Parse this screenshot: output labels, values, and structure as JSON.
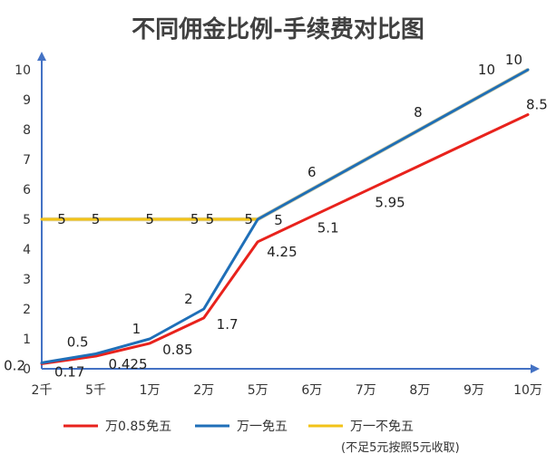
{
  "chart_data": {
    "type": "line",
    "title": "不同佣金比例-手续费对比图",
    "categories": [
      "2千",
      "5千",
      "1万",
      "2万",
      "5万",
      "6万",
      "7万",
      "8万",
      "9万",
      "10万"
    ],
    "y_ticks": [
      "0",
      "1",
      "2",
      "3",
      "4",
      "5",
      "6",
      "7",
      "8",
      "9",
      "10"
    ],
    "ylim": [
      0,
      10
    ],
    "grid": false,
    "legend_position": "bottom",
    "series": [
      {
        "name": "万0.85免五",
        "color": "#e8221c",
        "values": [
          0.17,
          0.425,
          0.85,
          1.7,
          4.25,
          5.1,
          5.95,
          6.8,
          7.65,
          8.5
        ],
        "labels": [
          "0.17",
          "0.425",
          "0.85",
          "1.7",
          "4.25",
          "5.1",
          "5.95",
          "",
          "",
          "8.5"
        ]
      },
      {
        "name": "万一免五",
        "color": "#1f6fb8",
        "values": [
          0.2,
          0.5,
          1,
          2,
          5,
          6,
          7,
          8,
          9,
          10
        ],
        "labels": [
          "0.2",
          "0.5",
          "1",
          "2",
          "",
          "",
          "",
          "",
          "",
          ""
        ]
      },
      {
        "name": "万一不免五",
        "note": "(不足5元按照5元收取)",
        "color": "#f2c318",
        "values": [
          5,
          5,
          5,
          5,
          5,
          6,
          7,
          8,
          9,
          10
        ],
        "labels": [
          "5",
          "5",
          "5",
          "5",
          "5",
          "6",
          "",
          "8",
          "",
          "10"
        ]
      }
    ],
    "extra_labels": [
      "5",
      "10"
    ]
  }
}
